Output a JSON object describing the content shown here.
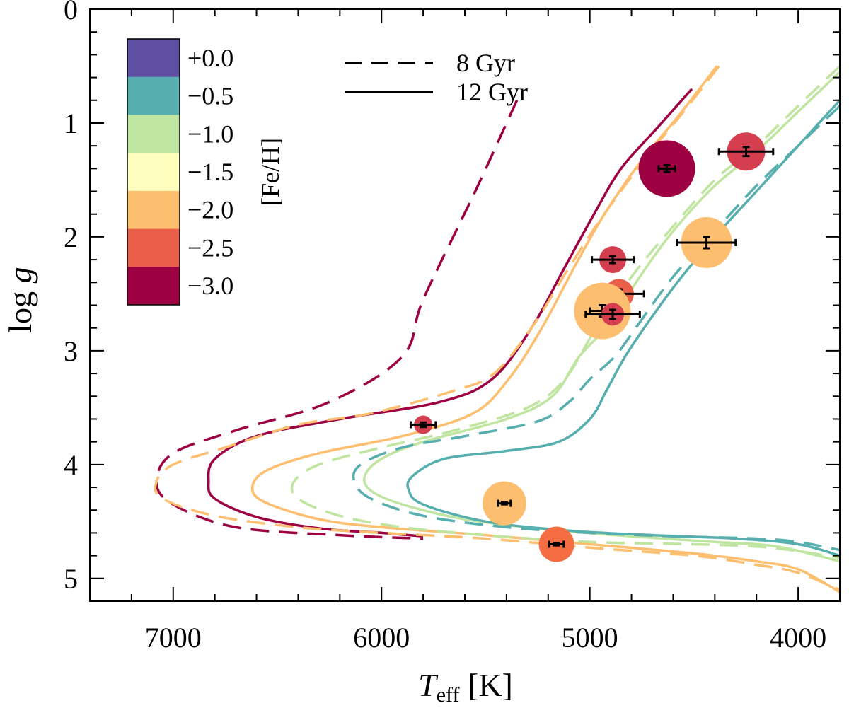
{
  "chart_data": {
    "type": "scatter",
    "xlabel_main": "T",
    "xlabel_sub": "eff",
    "xlabel_unit": "[K]",
    "ylabel_main": "log ",
    "ylabel_italic": "g",
    "xlim": [
      7400,
      3800
    ],
    "ylim": [
      0,
      5.2
    ],
    "x_ticks": [
      {
        "value": 7000,
        "label": "7000"
      },
      {
        "value": 6000,
        "label": "6000"
      },
      {
        "value": 5000,
        "label": "5000"
      },
      {
        "value": 4000,
        "label": "4000"
      }
    ],
    "y_ticks": [
      {
        "value": 0,
        "label": "0"
      },
      {
        "value": 1,
        "label": "1"
      },
      {
        "value": 2,
        "label": "2"
      },
      {
        "value": 3,
        "label": "3"
      },
      {
        "value": 4,
        "label": "4"
      },
      {
        "value": 5,
        "label": "5"
      }
    ],
    "colorbar": {
      "title": "[Fe/H]",
      "levels": [
        {
          "label": "+0.0",
          "color": "#5e4fa2"
        },
        {
          "label": "−0.5",
          "color": "#56aeae"
        },
        {
          "label": "−1.0",
          "color": "#bfe5a0"
        },
        {
          "label": "−1.5",
          "color": "#fefebd"
        },
        {
          "label": "−2.0",
          "color": "#fdbf6f"
        },
        {
          "label": "−2.5",
          "color": "#ea5f4a"
        },
        {
          "label": "−3.0",
          "color": "#9e0142"
        }
      ]
    },
    "legend": [
      {
        "label": "8 Gyr",
        "style": "dashed"
      },
      {
        "label": "12 Gyr",
        "style": "solid"
      }
    ],
    "isochrones": [
      {
        "name": "[Fe/H]=-3.0, 8 Gyr",
        "color": "#9e0142",
        "style": "dashed",
        "points": [
          [
            5350,
            0.8
          ],
          [
            5550,
            1.6
          ],
          [
            5800,
            2.55
          ],
          [
            5900,
            3.05
          ],
          [
            6250,
            3.45
          ],
          [
            6700,
            3.7
          ],
          [
            7000,
            3.9
          ],
          [
            7080,
            4.15
          ],
          [
            7000,
            4.35
          ],
          [
            6700,
            4.55
          ],
          [
            6200,
            4.62
          ],
          [
            5800,
            4.65
          ]
        ]
      },
      {
        "name": "[Fe/H]=-3.0, 12 Gyr",
        "color": "#9e0142",
        "style": "solid",
        "points": [
          [
            4510,
            0.7
          ],
          [
            4680,
            1.05
          ],
          [
            4850,
            1.4
          ],
          [
            4980,
            1.8
          ],
          [
            5130,
            2.3
          ],
          [
            5280,
            2.8
          ],
          [
            5470,
            3.25
          ],
          [
            5720,
            3.45
          ],
          [
            6200,
            3.6
          ],
          [
            6600,
            3.75
          ],
          [
            6800,
            3.95
          ],
          [
            6830,
            4.15
          ],
          [
            6800,
            4.3
          ],
          [
            6600,
            4.46
          ],
          [
            6300,
            4.56
          ],
          [
            6000,
            4.6
          ],
          [
            5800,
            4.63
          ]
        ]
      },
      {
        "name": "[Fe/H]=-2.0, 8 Gyr",
        "color": "#fdbf6f",
        "style": "dashed",
        "points": [
          [
            4380,
            0.5
          ],
          [
            4550,
            0.9
          ],
          [
            4750,
            1.35
          ],
          [
            4950,
            1.85
          ],
          [
            5110,
            2.3
          ],
          [
            5280,
            2.8
          ],
          [
            5460,
            3.2
          ],
          [
            5650,
            3.35
          ],
          [
            6050,
            3.55
          ],
          [
            6400,
            3.65
          ],
          [
            6750,
            3.85
          ],
          [
            7000,
            4.0
          ],
          [
            7080,
            4.15
          ],
          [
            7050,
            4.3
          ],
          [
            6800,
            4.45
          ],
          [
            6400,
            4.55
          ],
          [
            6000,
            4.6
          ],
          [
            5500,
            4.65
          ],
          [
            5000,
            4.73
          ],
          [
            4500,
            4.8
          ],
          [
            4200,
            4.88
          ],
          [
            4000,
            4.95
          ],
          [
            3800,
            5.1
          ]
        ]
      },
      {
        "name": "[Fe/H]=-2.0, 12 Gyr",
        "color": "#fdbf6f",
        "style": "solid",
        "points": [
          [
            4390,
            0.5
          ],
          [
            4580,
            0.95
          ],
          [
            4760,
            1.35
          ],
          [
            4930,
            1.8
          ],
          [
            5070,
            2.25
          ],
          [
            5230,
            2.8
          ],
          [
            5390,
            3.25
          ],
          [
            5560,
            3.55
          ],
          [
            5900,
            3.75
          ],
          [
            6300,
            3.9
          ],
          [
            6550,
            4.05
          ],
          [
            6620,
            4.2
          ],
          [
            6560,
            4.33
          ],
          [
            6300,
            4.48
          ],
          [
            6000,
            4.55
          ],
          [
            5500,
            4.62
          ],
          [
            5000,
            4.7
          ],
          [
            4500,
            4.78
          ],
          [
            4200,
            4.85
          ],
          [
            4000,
            4.92
          ],
          [
            3800,
            5.12
          ]
        ]
      },
      {
        "name": "[Fe/H]=-1.0, 8 Gyr",
        "color": "#bfe5a0",
        "style": "dashed",
        "points": [
          [
            3800,
            0.5
          ],
          [
            4000,
            0.85
          ],
          [
            4200,
            1.2
          ],
          [
            4400,
            1.5
          ],
          [
            4620,
            1.95
          ],
          [
            4800,
            2.35
          ],
          [
            4970,
            2.8
          ],
          [
            5120,
            3.25
          ],
          [
            5300,
            3.5
          ],
          [
            5650,
            3.7
          ],
          [
            6000,
            3.85
          ],
          [
            6300,
            4.0
          ],
          [
            6420,
            4.15
          ],
          [
            6400,
            4.3
          ],
          [
            6200,
            4.45
          ],
          [
            5900,
            4.55
          ],
          [
            5500,
            4.62
          ],
          [
            5000,
            4.68
          ],
          [
            4500,
            4.7
          ],
          [
            4200,
            4.72
          ],
          [
            4000,
            4.76
          ],
          [
            3800,
            4.82
          ]
        ]
      },
      {
        "name": "[Fe/H]=-1.0, 12 Gyr",
        "color": "#bfe5a0",
        "style": "solid",
        "points": [
          [
            3800,
            0.55
          ],
          [
            4000,
            0.9
          ],
          [
            4200,
            1.25
          ],
          [
            4400,
            1.55
          ],
          [
            4600,
            1.95
          ],
          [
            4760,
            2.35
          ],
          [
            4900,
            2.75
          ],
          [
            5050,
            3.05
          ],
          [
            5180,
            3.4
          ],
          [
            5400,
            3.6
          ],
          [
            5800,
            3.8
          ],
          [
            6000,
            3.95
          ],
          [
            6080,
            4.1
          ],
          [
            6050,
            4.23
          ],
          [
            5900,
            4.35
          ],
          [
            5600,
            4.48
          ],
          [
            5200,
            4.57
          ],
          [
            4800,
            4.63
          ],
          [
            4400,
            4.68
          ],
          [
            4100,
            4.72
          ],
          [
            3800,
            4.85
          ]
        ]
      },
      {
        "name": "[Fe/H]=-0.5, 8 Gyr",
        "color": "#56aeae",
        "style": "dashed",
        "points": [
          [
            3800,
            0.85
          ],
          [
            4000,
            1.2
          ],
          [
            4200,
            1.55
          ],
          [
            4400,
            1.95
          ],
          [
            4600,
            2.35
          ],
          [
            4760,
            2.75
          ],
          [
            4880,
            3.05
          ],
          [
            5000,
            3.25
          ],
          [
            5100,
            3.45
          ],
          [
            5250,
            3.62
          ],
          [
            5600,
            3.75
          ],
          [
            5900,
            3.85
          ],
          [
            6100,
            4.0
          ],
          [
            6130,
            4.15
          ],
          [
            6050,
            4.3
          ],
          [
            5800,
            4.45
          ],
          [
            5400,
            4.55
          ],
          [
            5000,
            4.6
          ],
          [
            4600,
            4.63
          ],
          [
            4200,
            4.65
          ],
          [
            4000,
            4.68
          ],
          [
            3800,
            4.75
          ]
        ]
      },
      {
        "name": "[Fe/H]=-0.5, 12 Gyr",
        "color": "#56aeae",
        "style": "solid",
        "points": [
          [
            3800,
            0.8
          ],
          [
            4000,
            1.2
          ],
          [
            4200,
            1.6
          ],
          [
            4400,
            2.0
          ],
          [
            4580,
            2.4
          ],
          [
            4720,
            2.75
          ],
          [
            4830,
            3.05
          ],
          [
            4920,
            3.35
          ],
          [
            5000,
            3.6
          ],
          [
            5150,
            3.8
          ],
          [
            5400,
            3.88
          ],
          [
            5700,
            3.95
          ],
          [
            5850,
            4.1
          ],
          [
            5870,
            4.22
          ],
          [
            5800,
            4.35
          ],
          [
            5500,
            4.5
          ],
          [
            5100,
            4.58
          ],
          [
            4700,
            4.62
          ],
          [
            4300,
            4.65
          ],
          [
            4000,
            4.7
          ],
          [
            3800,
            4.8
          ]
        ]
      }
    ],
    "stars": [
      {
        "teff": 4630,
        "logg": 1.4,
        "color": "#9e0142",
        "size": 40,
        "terr": 40,
        "gerr": 0.03
      },
      {
        "teff": 4250,
        "logg": 1.25,
        "color": "#d53e4f",
        "size": 27,
        "terr": 130,
        "gerr": 0.04
      },
      {
        "teff": 4440,
        "logg": 2.05,
        "color": "#fdbf6f",
        "size": 36,
        "terr": 140,
        "gerr": 0.05
      },
      {
        "teff": 4890,
        "logg": 2.2,
        "color": "#d53e4f",
        "size": 19,
        "terr": 100,
        "gerr": 0.03
      },
      {
        "teff": 4860,
        "logg": 2.5,
        "color": "#ea5f4a",
        "size": 21,
        "terr": 120,
        "gerr": 0.04
      },
      {
        "teff": 4940,
        "logg": 2.65,
        "color": "#fdbf6f",
        "size": 40,
        "terr": 60,
        "gerr": 0.05
      },
      {
        "teff": 4890,
        "logg": 2.68,
        "color": "#d53e4f",
        "size": 16,
        "terr": 130,
        "gerr": 0.04
      },
      {
        "teff": 5800,
        "logg": 3.65,
        "color": "#d53e4f",
        "size": 13,
        "terr": 60,
        "gerr": 0.02
      },
      {
        "teff": 5410,
        "logg": 4.34,
        "color": "#fdbf6f",
        "size": 31,
        "terr": 30,
        "gerr": 0.01
      },
      {
        "teff": 5160,
        "logg": 4.7,
        "color": "#f46d43",
        "size": 25,
        "terr": 35,
        "gerr": 0.01
      }
    ]
  }
}
